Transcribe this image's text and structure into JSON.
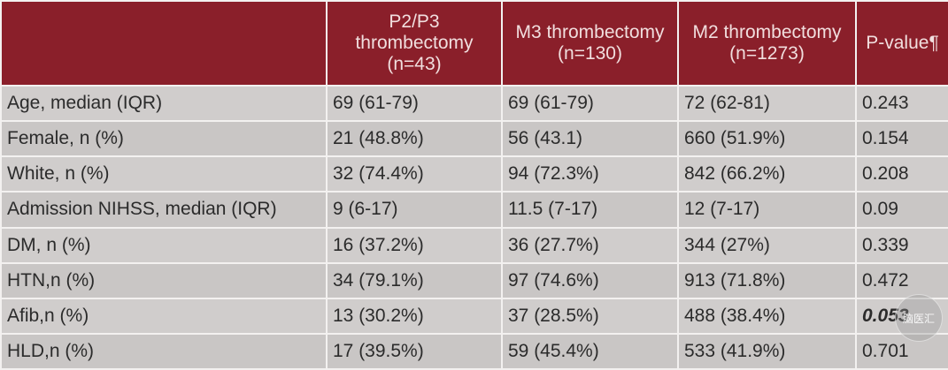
{
  "table": {
    "headers": [
      "",
      "P2/P3 thrombectomy (n=43)",
      "M3 thrombectomy (n=130)",
      "M2 thrombectomy (n=1273)",
      "P-value¶"
    ],
    "rows": [
      [
        "Age, median (IQR)",
        "69 (61-79)",
        "69 (61-79)",
        "72 (62-81)",
        "0.243"
      ],
      [
        "Female, n (%)",
        "21 (48.8%)",
        "56 (43.1)",
        "660 (51.9%)",
        "0.154"
      ],
      [
        "White, n (%)",
        "32 (74.4%)",
        "94 (72.3%)",
        "842 (66.2%)",
        "0.208"
      ],
      [
        "Admission NIHSS, median (IQR)",
        "9 (6-17)",
        "11.5 (7-17)",
        "12 (7-17)",
        "0.09"
      ],
      [
        "DM, n (%)",
        "16 (37.2%)",
        "36 (27.7%)",
        "344 (27%)",
        "0.339"
      ],
      [
        "HTN,n (%)",
        "34 (79.1%)",
        "97 (74.6%)",
        "913 (71.8%)",
        "0.472"
      ],
      [
        "Afib,n (%)",
        "13 (30.2%)",
        "37 (28.5%)",
        "488 (38.4%)",
        "0.053"
      ],
      [
        "HLD,n (%)",
        "17 (39.5%)",
        "59 (45.4%)",
        "533 (41.9%)",
        "0.701"
      ]
    ]
  },
  "colors": {
    "header_bg": "#8a1f2a",
    "header_text": "#f1dede",
    "cell_bg": "#d0cdcc",
    "border": "#f3f1f0"
  },
  "watermark": {
    "text": "脑医汇"
  }
}
